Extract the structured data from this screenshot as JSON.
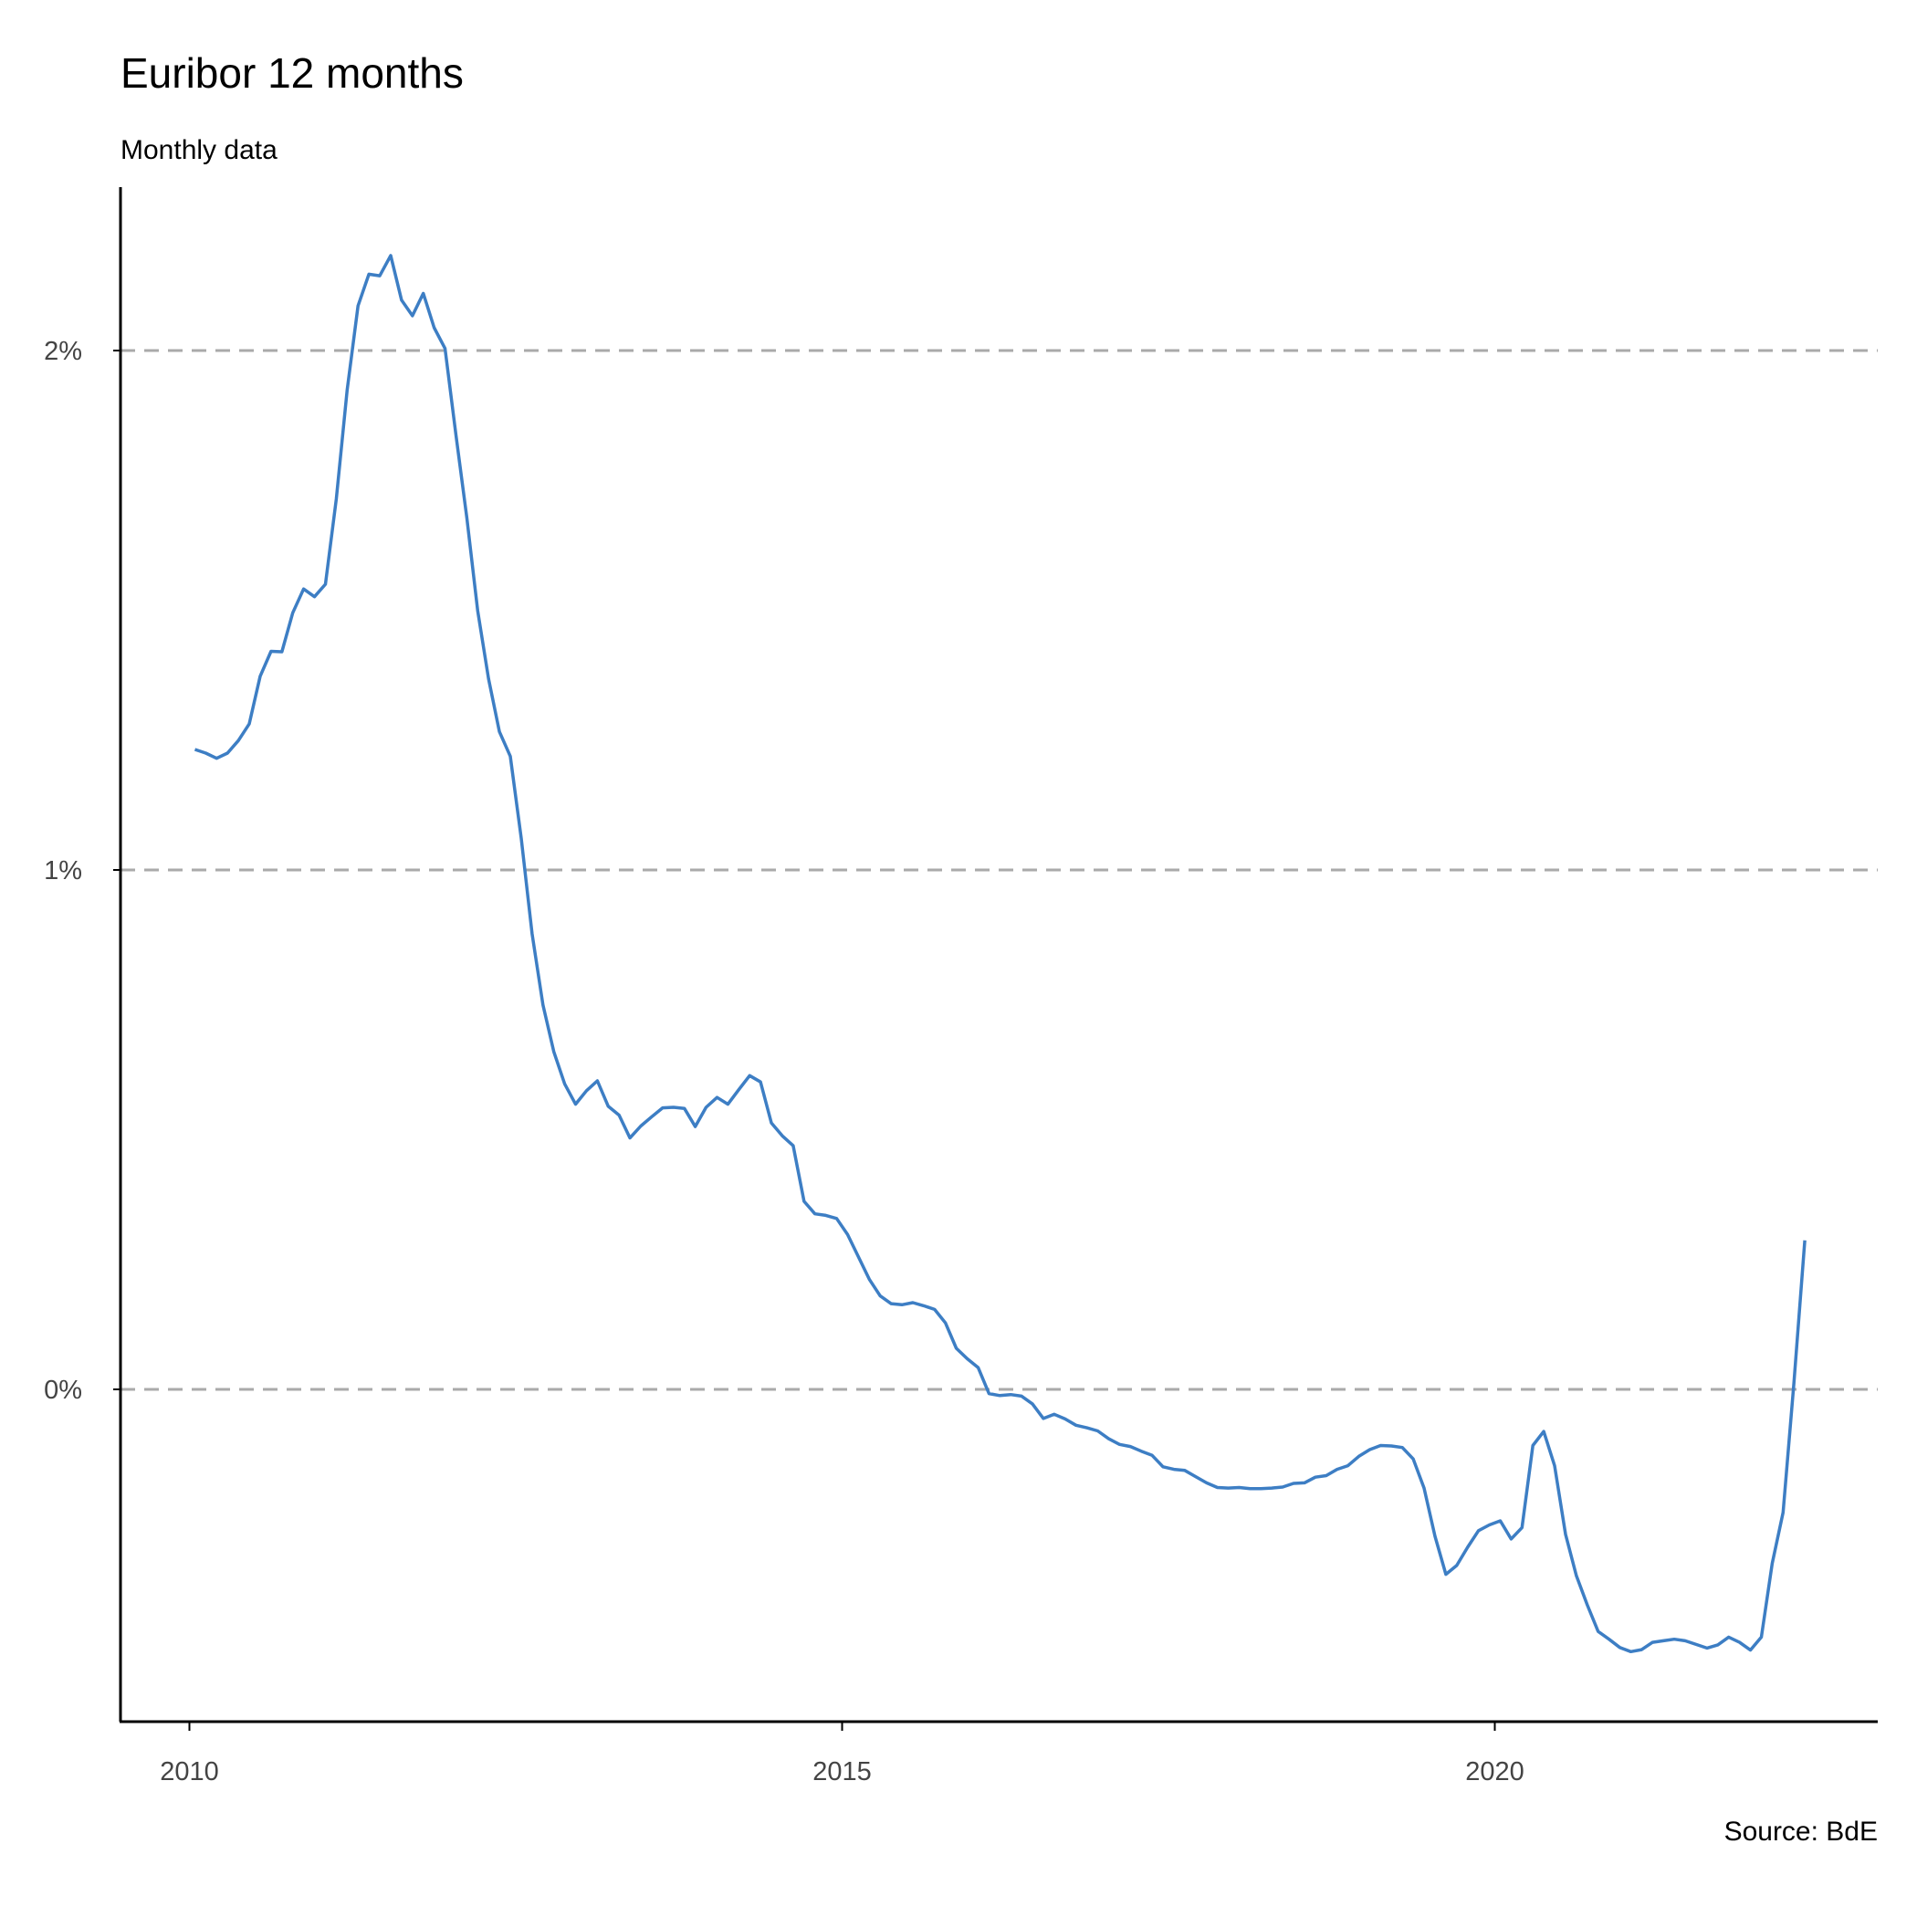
{
  "chart_data": {
    "type": "line",
    "title": "Euribor 12 months",
    "subtitle": "Monthly data",
    "caption": "Source: BdE",
    "xlabel": "",
    "ylabel": "",
    "xlim": [
      2009.9,
      2022.9
    ],
    "ylim": [
      -0.64,
      2.31
    ],
    "x_ticks": [
      {
        "value": 2010,
        "label": "2010"
      },
      {
        "value": 2015,
        "label": "2015"
      },
      {
        "value": 2020,
        "label": "2020"
      }
    ],
    "y_ticks": [
      {
        "value": 0,
        "label": "0%"
      },
      {
        "value": 1,
        "label": "1%"
      },
      {
        "value": 2,
        "label": "2%"
      }
    ],
    "grid": "horizontal dashed",
    "line_color": "#3d7ec4",
    "series": [
      {
        "name": "Euribor 12 months",
        "start": "2010-01",
        "values": [
          1.232,
          1.225,
          1.215,
          1.225,
          1.249,
          1.281,
          1.373,
          1.421,
          1.42,
          1.495,
          1.541,
          1.526,
          1.55,
          1.714,
          1.924,
          2.086,
          2.147,
          2.144,
          2.183,
          2.097,
          2.067,
          2.11,
          2.044,
          2.004,
          1.837,
          1.678,
          1.499,
          1.368,
          1.266,
          1.219,
          1.061,
          0.877,
          0.74,
          0.65,
          0.588,
          0.549,
          0.575,
          0.594,
          0.545,
          0.528,
          0.484,
          0.507,
          0.525,
          0.542,
          0.543,
          0.541,
          0.506,
          0.543,
          0.562,
          0.549,
          0.577,
          0.604,
          0.592,
          0.513,
          0.488,
          0.469,
          0.362,
          0.338,
          0.335,
          0.329,
          0.298,
          0.255,
          0.212,
          0.18,
          0.165,
          0.163,
          0.167,
          0.161,
          0.154,
          0.128,
          0.079,
          0.059,
          0.042,
          -0.008,
          -0.012,
          -0.01,
          -0.013,
          -0.028,
          -0.056,
          -0.048,
          -0.057,
          -0.069,
          -0.074,
          -0.08,
          -0.095,
          -0.106,
          -0.11,
          -0.119,
          -0.127,
          -0.149,
          -0.154,
          -0.156,
          -0.168,
          -0.18,
          -0.189,
          -0.19,
          -0.189,
          -0.191,
          -0.191,
          -0.19,
          -0.188,
          -0.181,
          -0.18,
          -0.169,
          -0.166,
          -0.154,
          -0.147,
          -0.129,
          -0.116,
          -0.108,
          -0.109,
          -0.112,
          -0.134,
          -0.19,
          -0.283,
          -0.356,
          -0.339,
          -0.304,
          -0.272,
          -0.261,
          -0.253,
          -0.288,
          -0.266,
          -0.108,
          -0.081,
          -0.147,
          -0.279,
          -0.359,
          -0.415,
          -0.466,
          -0.481,
          -0.497,
          -0.505,
          -0.501,
          -0.487,
          -0.484,
          -0.481,
          -0.484,
          -0.491,
          -0.498,
          -0.492,
          -0.477,
          -0.487,
          -0.502,
          -0.477,
          -0.335,
          -0.237,
          0.013,
          0.287
        ]
      }
    ]
  }
}
